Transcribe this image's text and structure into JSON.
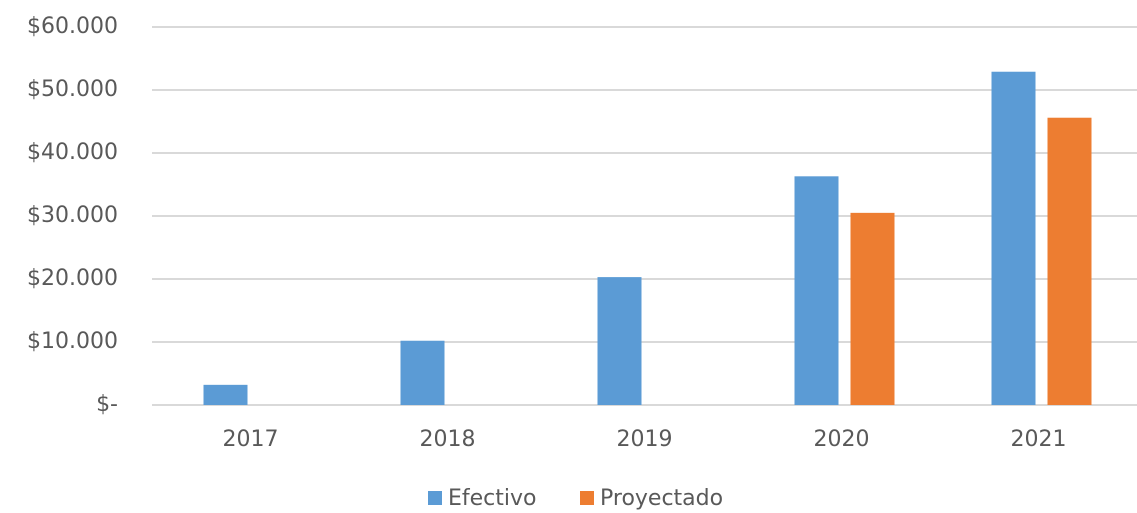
{
  "chart_data": {
    "type": "bar",
    "categories": [
      "2017",
      "2018",
      "2019",
      "2020",
      "2021"
    ],
    "series": [
      {
        "name": "Efectivo",
        "color": "#5b9bd5",
        "values": [
          3200,
          10200,
          20300,
          36300,
          52900
        ]
      },
      {
        "name": "Proyectado",
        "color": "#ed7d31",
        "values": [
          null,
          null,
          null,
          30500,
          45600
        ]
      }
    ],
    "ylim": [
      0,
      60000
    ],
    "yticks": [
      {
        "value": 0,
        "label": "$-"
      },
      {
        "value": 10000,
        "label": "$10.000"
      },
      {
        "value": 20000,
        "label": "$20.000"
      },
      {
        "value": 30000,
        "label": "$30.000"
      },
      {
        "value": 40000,
        "label": "$40.000"
      },
      {
        "value": 50000,
        "label": "$50.000"
      },
      {
        "value": 60000,
        "label": "$60.000"
      }
    ],
    "grid": true,
    "legend": "bottom"
  }
}
